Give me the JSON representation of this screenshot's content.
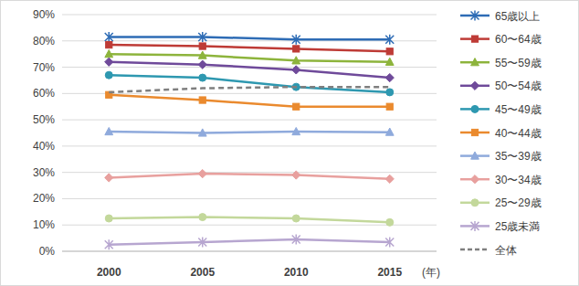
{
  "chart_data": {
    "type": "line",
    "categories": [
      "2000",
      "2005",
      "2010",
      "2015"
    ],
    "xlabel": "(年)",
    "ylim": [
      0,
      90
    ],
    "yticks": [
      {
        "value": 0,
        "label": "0%"
      },
      {
        "value": 10,
        "label": "10%"
      },
      {
        "value": 20,
        "label": "20%"
      },
      {
        "value": 30,
        "label": "30%"
      },
      {
        "value": 40,
        "label": "40%"
      },
      {
        "value": 50,
        "label": "50%"
      },
      {
        "value": 60,
        "label": "60%"
      },
      {
        "value": 70,
        "label": "70%"
      },
      {
        "value": 80,
        "label": "80%"
      },
      {
        "value": 90,
        "label": "90%"
      }
    ],
    "grid": true,
    "legend": "right",
    "series": [
      {
        "name": "65歳以上",
        "color": "#2e6cb5",
        "marker": "star",
        "line_style": "solid",
        "values": [
          81.5,
          81.5,
          80.5,
          80.5
        ]
      },
      {
        "name": "60〜64歳",
        "color": "#be3b36",
        "marker": "square",
        "line_style": "solid",
        "values": [
          78.5,
          78,
          77,
          76
        ]
      },
      {
        "name": "55〜59歳",
        "color": "#8db43c",
        "marker": "triangle",
        "line_style": "solid",
        "values": [
          75,
          74.5,
          72.5,
          72
        ]
      },
      {
        "name": "50〜54歳",
        "color": "#6f4a9a",
        "marker": "diamond",
        "line_style": "solid",
        "values": [
          72,
          71,
          69,
          66
        ]
      },
      {
        "name": "45〜49歳",
        "color": "#2e98b0",
        "marker": "circle",
        "line_style": "solid",
        "values": [
          67,
          66,
          62.5,
          60.5
        ]
      },
      {
        "name": "40〜44歳",
        "color": "#ea8a2e",
        "marker": "square",
        "line_style": "solid",
        "values": [
          59.5,
          57.5,
          55,
          55
        ]
      },
      {
        "name": "35〜39歳",
        "color": "#8faadc",
        "marker": "triangle",
        "line_style": "solid",
        "values": [
          45.5,
          45,
          45.5,
          45.3
        ]
      },
      {
        "name": "30〜34歳",
        "color": "#e8a09e",
        "marker": "diamond",
        "line_style": "solid",
        "values": [
          28,
          29.5,
          29,
          27.5
        ]
      },
      {
        "name": "25〜29歳",
        "color": "#c3d89b",
        "marker": "circle",
        "line_style": "solid",
        "values": [
          12.5,
          13,
          12.5,
          11
        ]
      },
      {
        "name": "25歳未満",
        "color": "#b7a6d0",
        "marker": "star",
        "line_style": "solid",
        "values": [
          2.5,
          3.5,
          4.5,
          3.5
        ]
      },
      {
        "name": "全体",
        "color": "#7f7f7f",
        "marker": "none",
        "line_style": "dashed",
        "values": [
          60.5,
          62,
          62.5,
          62.5
        ]
      }
    ]
  }
}
